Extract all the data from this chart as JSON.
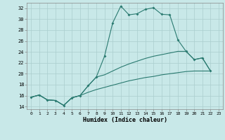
{
  "xlabel": "Humidex (Indice chaleur)",
  "xlim": [
    -0.5,
    23.5
  ],
  "ylim": [
    13.5,
    33.0
  ],
  "yticks": [
    14,
    16,
    18,
    20,
    22,
    24,
    26,
    28,
    30,
    32
  ],
  "xticks": [
    0,
    1,
    2,
    3,
    4,
    5,
    6,
    7,
    8,
    9,
    10,
    11,
    12,
    13,
    14,
    15,
    16,
    17,
    18,
    19,
    20,
    21,
    22,
    23
  ],
  "bg_color": "#c8e8e8",
  "grid_color": "#aacece",
  "line_color": "#2a7a70",
  "line1_y": [
    15.7,
    16.1,
    15.2,
    15.1,
    14.2,
    15.6,
    16.0,
    17.8,
    19.4,
    23.2,
    29.3,
    32.4,
    30.8,
    31.0,
    31.8,
    32.1,
    30.9,
    30.8,
    26.2,
    24.1,
    22.6,
    22.9,
    20.5,
    null
  ],
  "line2_y": [
    15.7,
    16.1,
    15.2,
    15.1,
    14.2,
    15.6,
    16.0,
    17.8,
    19.4,
    19.8,
    20.5,
    21.2,
    21.8,
    22.3,
    22.8,
    23.2,
    23.5,
    23.8,
    24.1,
    24.1,
    22.6,
    22.9,
    20.5,
    null
  ],
  "line3_y": [
    15.7,
    16.1,
    15.2,
    15.1,
    14.2,
    15.6,
    16.0,
    16.6,
    17.1,
    17.5,
    17.9,
    18.3,
    18.7,
    19.0,
    19.3,
    19.5,
    19.8,
    20.0,
    20.2,
    20.4,
    20.5,
    20.5,
    20.5,
    null
  ]
}
